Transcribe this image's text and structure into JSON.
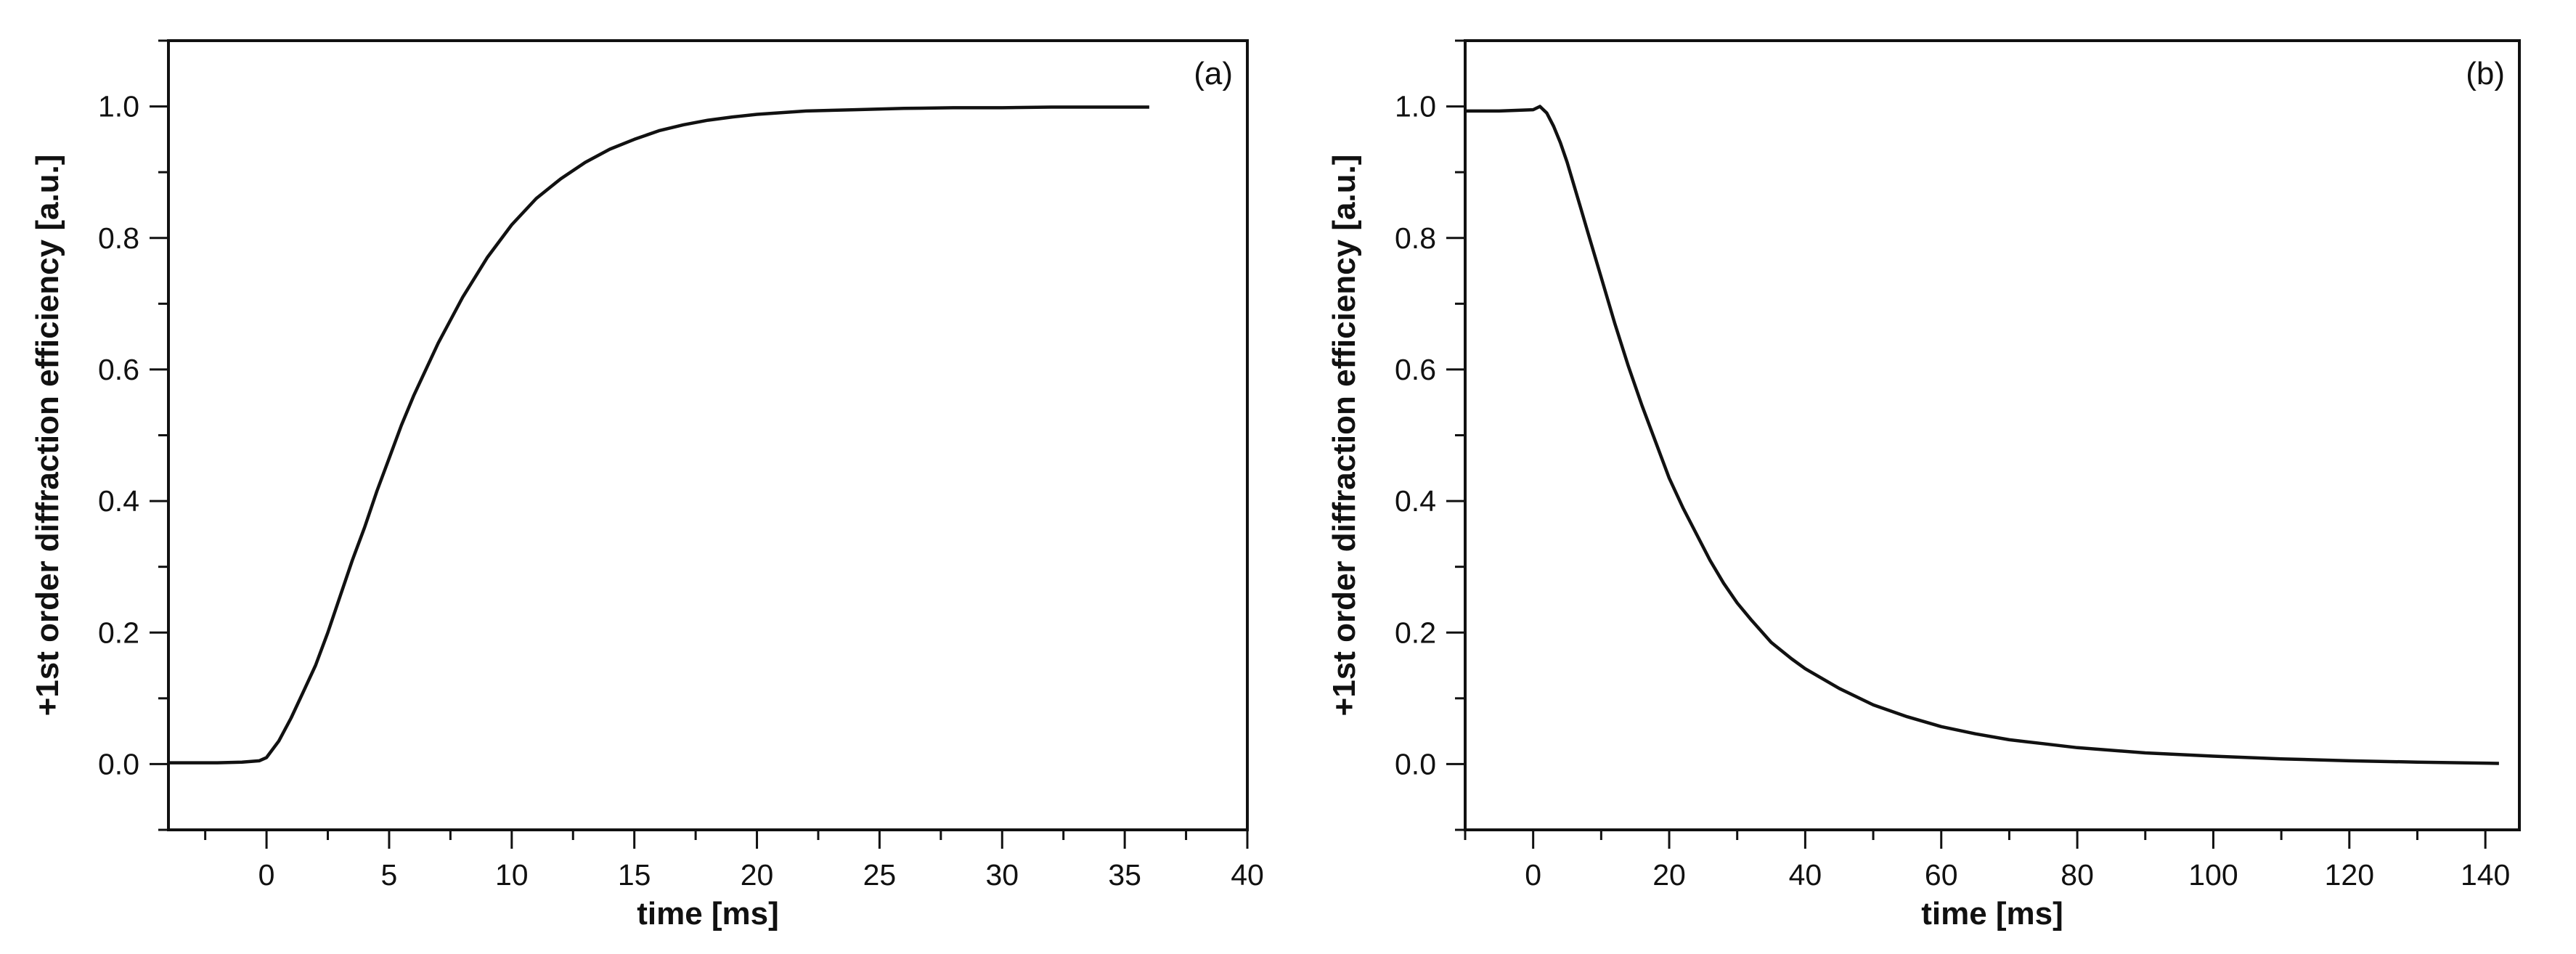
{
  "chart_data": [
    {
      "type": "line",
      "panel_label": "(a)",
      "xlabel": "time [ms]",
      "ylabel": "+1st order diffraction efficiency [a.u.]",
      "xlim": [
        -4,
        40
      ],
      "ylim": [
        -0.1,
        1.1
      ],
      "xticks": [
        0,
        5,
        10,
        15,
        20,
        25,
        30,
        35,
        40
      ],
      "xtick_labels": [
        "0",
        "5",
        "10",
        "15",
        "20",
        "25",
        "30",
        "35",
        "40"
      ],
      "yticks": [
        0.0,
        0.2,
        0.4,
        0.6,
        0.8,
        1.0
      ],
      "ytick_labels": [
        "0.0",
        "0.2",
        "0.4",
        "0.6",
        "0.8",
        "1.0"
      ],
      "grid": false,
      "series": [
        {
          "x": [
            -4,
            -2,
            -1,
            -0.3,
            0,
            0.5,
            1,
            1.5,
            2,
            2.5,
            3,
            3.5,
            4,
            4.5,
            5,
            5.5,
            6,
            6.5,
            7,
            7.5,
            8,
            8.5,
            9,
            10,
            11,
            12,
            13,
            14,
            15,
            16,
            17,
            18,
            19,
            20,
            22,
            24,
            26,
            28,
            30,
            32,
            34,
            36
          ],
          "y": [
            0.002,
            0.002,
            0.003,
            0.005,
            0.01,
            0.035,
            0.07,
            0.11,
            0.15,
            0.2,
            0.255,
            0.31,
            0.36,
            0.415,
            0.465,
            0.515,
            0.56,
            0.6,
            0.64,
            0.675,
            0.71,
            0.74,
            0.77,
            0.82,
            0.86,
            0.89,
            0.915,
            0.935,
            0.95,
            0.963,
            0.972,
            0.979,
            0.984,
            0.988,
            0.993,
            0.995,
            0.997,
            0.998,
            0.998,
            0.999,
            0.999,
            0.999
          ]
        }
      ]
    },
    {
      "type": "line",
      "panel_label": "(b)",
      "xlabel": "time [ms]",
      "ylabel": "+1st order diffraction efficiency [a.u.]",
      "xlim": [
        -10,
        145
      ],
      "ylim": [
        -0.1,
        1.1
      ],
      "xticks": [
        0,
        20,
        40,
        60,
        80,
        100,
        120,
        140
      ],
      "xtick_labels": [
        "0",
        "20",
        "40",
        "60",
        "80",
        "100",
        "120",
        "140"
      ],
      "yticks": [
        0.0,
        0.2,
        0.4,
        0.6,
        0.8,
        1.0
      ],
      "ytick_labels": [
        "0.0",
        "0.2",
        "0.4",
        "0.6",
        "0.8",
        "1.0"
      ],
      "grid": false,
      "series": [
        {
          "x": [
            -10,
            -5,
            0,
            1,
            2,
            3,
            4,
            5,
            6,
            7,
            8,
            10,
            12,
            14,
            16,
            18,
            20,
            22,
            24,
            26,
            28,
            30,
            32,
            35,
            38,
            40,
            45,
            50,
            55,
            60,
            65,
            70,
            75,
            80,
            90,
            100,
            110,
            120,
            130,
            142
          ],
          "y": [
            0.993,
            0.993,
            0.995,
            1.0,
            0.99,
            0.97,
            0.945,
            0.915,
            0.88,
            0.845,
            0.81,
            0.74,
            0.67,
            0.605,
            0.545,
            0.49,
            0.435,
            0.39,
            0.35,
            0.31,
            0.275,
            0.245,
            0.22,
            0.185,
            0.16,
            0.145,
            0.115,
            0.09,
            0.072,
            0.057,
            0.046,
            0.037,
            0.031,
            0.025,
            0.017,
            0.012,
            0.008,
            0.005,
            0.003,
            0.001
          ]
        }
      ]
    }
  ]
}
